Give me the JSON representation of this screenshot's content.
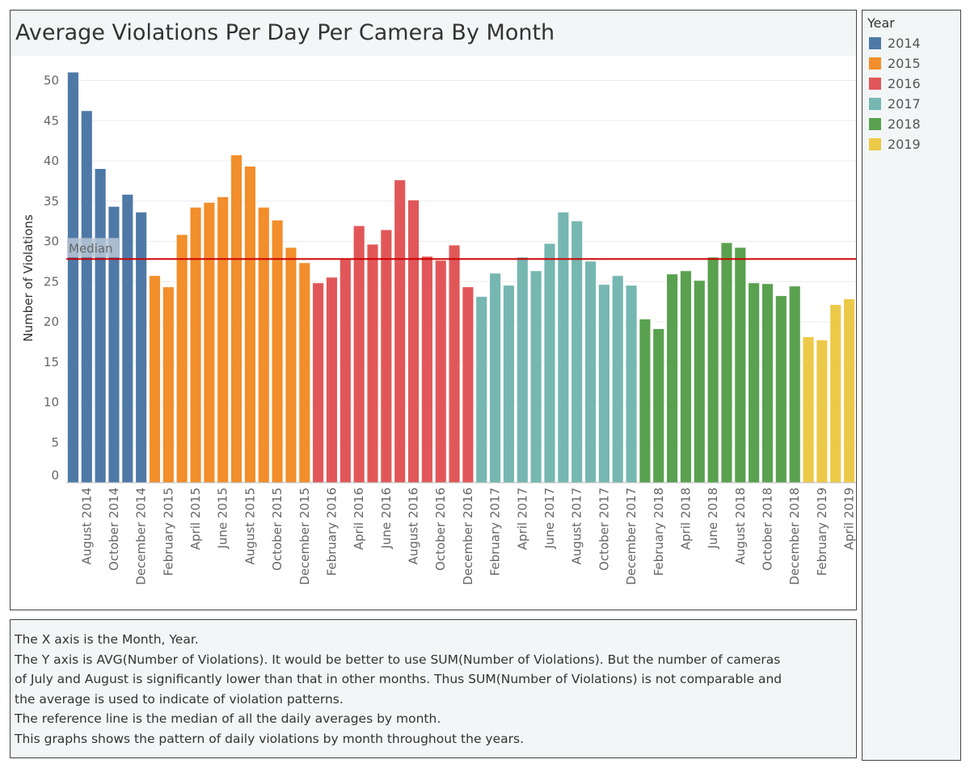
{
  "chart_data": {
    "type": "bar",
    "title": "Average Violations Per Day Per Camera By Month",
    "ylabel": "Number of Violations",
    "xlabel": "",
    "ylim": [
      0,
      50
    ],
    "yticks": [
      0,
      5,
      10,
      15,
      20,
      25,
      30,
      35,
      40,
      45,
      50
    ],
    "grid": true,
    "legend_title": "Year",
    "legend_position": "right",
    "categories": [
      "July 2014",
      "August 2014",
      "September 2014",
      "October 2014",
      "November 2014",
      "December 2014",
      "January 2015",
      "February 2015",
      "March 2015",
      "April 2015",
      "May 2015",
      "June 2015",
      "July 2015",
      "August 2015",
      "September 2015",
      "October 2015",
      "November 2015",
      "December 2015",
      "January 2016",
      "February 2016",
      "March 2016",
      "April 2016",
      "May 2016",
      "June 2016",
      "July 2016",
      "August 2016",
      "September 2016",
      "October 2016",
      "November 2016",
      "December 2016",
      "January 2017",
      "February 2017",
      "March 2017",
      "April 2017",
      "May 2017",
      "June 2017",
      "July 2017",
      "August 2017",
      "September 2017",
      "October 2017",
      "November 2017",
      "December 2017",
      "January 2018",
      "February 2018",
      "March 2018",
      "April 2018",
      "May 2018",
      "June 2018",
      "July 2018",
      "August 2018",
      "September 2018",
      "October 2018",
      "November 2018",
      "December 2018",
      "January 2019",
      "February 2019",
      "March 2019",
      "April 2019"
    ],
    "tick_labels": [
      "August 2014",
      "October 2014",
      "December 2014",
      "February 2015",
      "April 2015",
      "June 2015",
      "August 2015",
      "October 2015",
      "December 2015",
      "February 2016",
      "April 2016",
      "June 2016",
      "August 2016",
      "October 2016",
      "December 2016",
      "February 2017",
      "April 2017",
      "June 2017",
      "August 2017",
      "October 2017",
      "December 2017",
      "February 2018",
      "April 2018",
      "June 2018",
      "August 2018",
      "October 2018",
      "December 2018",
      "February 2019",
      "April 2019"
    ],
    "years": [
      "2014",
      "2014",
      "2014",
      "2014",
      "2014",
      "2014",
      "2015",
      "2015",
      "2015",
      "2015",
      "2015",
      "2015",
      "2015",
      "2015",
      "2015",
      "2015",
      "2015",
      "2015",
      "2016",
      "2016",
      "2016",
      "2016",
      "2016",
      "2016",
      "2016",
      "2016",
      "2016",
      "2016",
      "2016",
      "2016",
      "2017",
      "2017",
      "2017",
      "2017",
      "2017",
      "2017",
      "2017",
      "2017",
      "2017",
      "2017",
      "2017",
      "2017",
      "2018",
      "2018",
      "2018",
      "2018",
      "2018",
      "2018",
      "2018",
      "2018",
      "2018",
      "2018",
      "2018",
      "2018",
      "2019",
      "2019",
      "2019",
      "2019"
    ],
    "values": [
      51.0,
      46.2,
      39.0,
      34.3,
      35.8,
      33.6,
      25.7,
      24.3,
      30.8,
      34.2,
      34.8,
      35.5,
      40.7,
      39.3,
      34.2,
      32.6,
      29.2,
      27.3,
      24.8,
      25.5,
      27.7,
      31.9,
      29.6,
      31.4,
      37.6,
      35.1,
      28.1,
      27.6,
      29.5,
      24.3,
      23.1,
      26.0,
      24.5,
      28.0,
      26.3,
      29.7,
      33.6,
      32.5,
      27.5,
      24.6,
      25.7,
      24.5,
      20.3,
      19.1,
      25.9,
      26.3,
      25.1,
      28.0,
      29.8,
      29.2,
      24.8,
      24.7,
      23.2,
      24.4,
      18.1,
      17.7,
      22.1,
      22.8
    ],
    "series": [
      {
        "name": "2014",
        "color": "#4e79a7"
      },
      {
        "name": "2015",
        "color": "#f28e2b"
      },
      {
        "name": "2016",
        "color": "#e15759"
      },
      {
        "name": "2017",
        "color": "#76b7b2"
      },
      {
        "name": "2018",
        "color": "#59a14f"
      },
      {
        "name": "2019",
        "color": "#edc948"
      }
    ],
    "reference_line": {
      "label": "Median",
      "value": 27.8,
      "color": "#cc0000"
    }
  },
  "notes": {
    "lines": [
      "The X axis is the Month,  Year.",
      "The Y axis is AVG(Number of Violations). It would be better to use SUM(Number of Violations). But the number of cameras",
      "of July and August is significantly lower than that in other months. Thus SUM(Number of Violations) is not comparable and",
      "the average is used to indicate of violation patterns.",
      "The reference line is the median of all the daily averages by month.",
      "This graphs shows the pattern of daily violations by month throughout the years."
    ]
  }
}
